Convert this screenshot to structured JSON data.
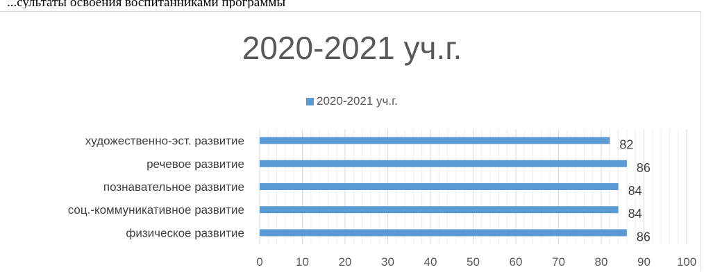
{
  "top_text": "...сультаты освоения воспитанниками программы",
  "chart_data": {
    "type": "bar",
    "orientation": "horizontal",
    "title": "2020-2021 уч.г.",
    "legend_position": "top",
    "categories": [
      "художественно-эст. развитие",
      "речевое развитие",
      "познавательное развитие",
      "соц.-коммуникативное развитие",
      "физическое развитие"
    ],
    "series": [
      {
        "name": "2020-2021 уч.г.",
        "values": [
          82,
          86,
          84,
          84,
          86
        ]
      }
    ],
    "xlim": [
      0,
      100
    ],
    "x_ticks": [
      0,
      10,
      20,
      30,
      40,
      50,
      60,
      70,
      80,
      90,
      100
    ],
    "x_tick_labels": [
      "0",
      "10",
      "20",
      "30",
      "40",
      "50",
      "60",
      "70",
      "80",
      "90",
      "100"
    ],
    "bar_color": "#5b9bd5",
    "grid": true,
    "data_labels": true
  }
}
